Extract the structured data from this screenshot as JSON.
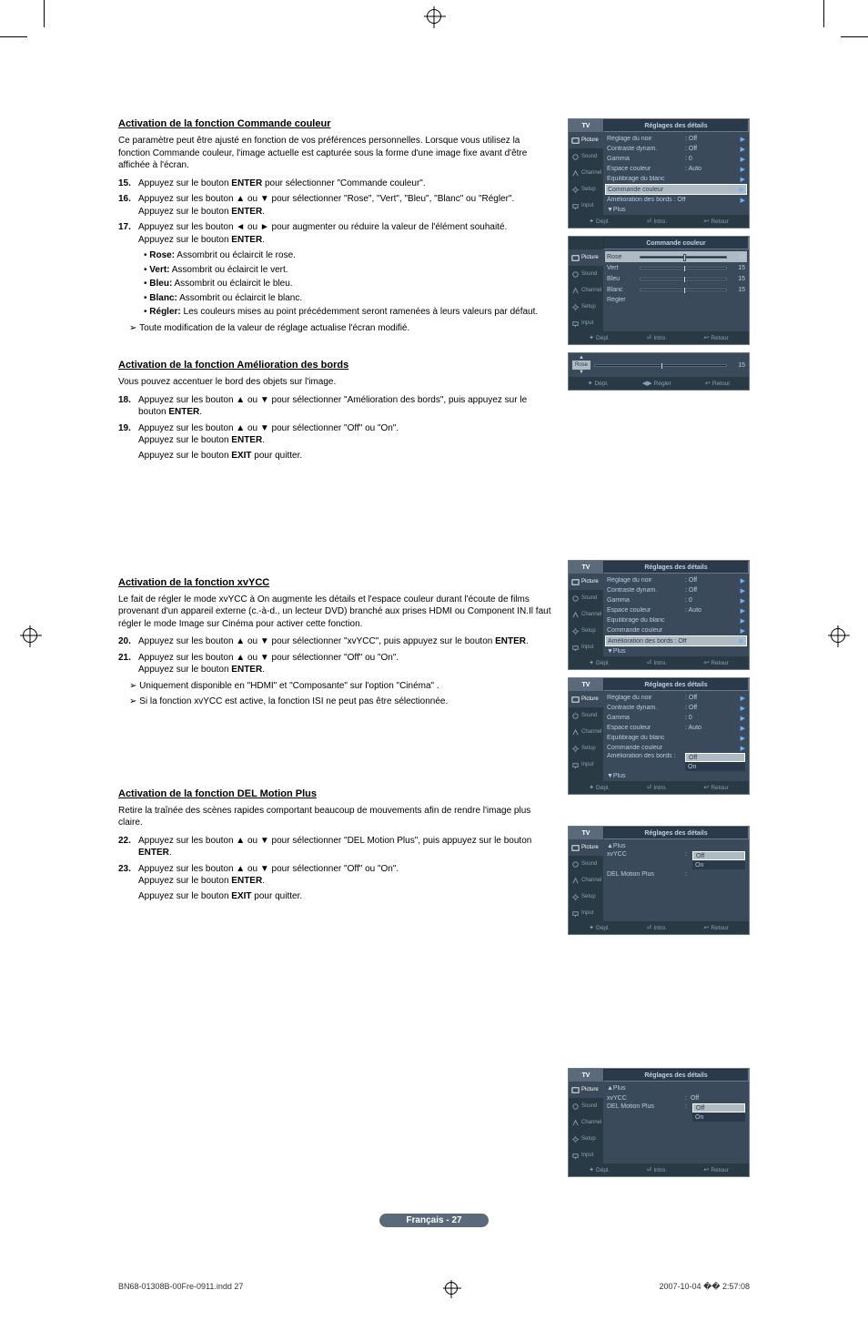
{
  "colors": {
    "osd_bg": "#3a4a5a",
    "osd_side": "#2a3a44",
    "osd_header": "#5a6a7a",
    "osd_highlight_bg": "#aebac4",
    "osd_highlight_fg": "#2a3a4a",
    "osd_text": "#b8cde0",
    "osd_arrow": "#6fb0ff",
    "badge_bg": "#5a6a7a"
  },
  "sections": {
    "colorCtrl": {
      "title": "Activation de la fonction Commande couleur",
      "desc": "Ce paramètre peut être ajusté en fonction de vos préférences personnelles. Lorsque vous utilisez la fonction Commande couleur, l'image actuelle est capturée sous la forme d'une image fixe avant d'être affichée à l'écran.",
      "steps": [
        {
          "n": "15.",
          "t": "Appuyez sur le bouton <b>ENTER</b> pour sélectionner \"Commande couleur\"."
        },
        {
          "n": "16.",
          "t": "Appuyez sur les bouton ▲ ou ▼ pour sélectionner \"Rose\", \"Vert\", \"Bleu\", \"Blanc\" ou \"Régler\".<br>Appuyez sur le bouton <b>ENTER</b>."
        },
        {
          "n": "17.",
          "t": "Appuyez sur les bouton ◄ ou ► pour augmenter ou réduire la valeur de l'élément souhaité.<br>Appuyez sur le bouton <b>ENTER</b>."
        }
      ],
      "bullets": [
        "<b>Rose:</b> Assombrit ou éclaircit le rose.",
        "<b>Vert:</b> Assombrit ou éclaircit le vert.",
        "<b>Bleu:</b> Assombrit ou éclaircit le bleu.",
        "<b>Blanc:</b> Assombrit ou éclaircit le blanc.",
        "<b>Régler:</b> Les couleurs mises au point précédemment seront ramenées à leurs valeurs par défaut."
      ],
      "note": "Toute modification de la valeur de réglage actualise l'écran modifié."
    },
    "edge": {
      "title": "Activation de la fonction Amélioration des bords",
      "desc": "Vous pouvez accentuer le bord des objets sur l'image.",
      "steps": [
        {
          "n": "18.",
          "t": "Appuyez sur les bouton ▲ ou ▼ pour sélectionner \"Amélioration des bords\", puis appuyez sur le bouton <b>ENTER</b>."
        },
        {
          "n": "19.",
          "t": "Appuyez sur les bouton ▲ ou ▼ pour sélectionner \"Off\" ou \"On\".<br>Appuyez sur le bouton <b>ENTER</b>."
        }
      ],
      "exitLine": "Appuyez sur le bouton <b>EXIT</b> pour quitter."
    },
    "xvycc": {
      "title": "Activation de la fonction xvYCC",
      "desc": "Le fait de régler le mode xvYCC à On augmente les détails et l'espace couleur durant l'écoute de films provenant d'un appareil externe (c.-à-d., un lecteur DVD) branché aux prises HDMI ou Component IN.Il faut régler le mode Image sur Cinéma pour activer cette fonction.",
      "steps": [
        {
          "n": "20.",
          "t": "Appuyez sur les bouton ▲ ou ▼ pour sélectionner \"xvYCC\", puis appuyez sur le bouton <b>ENTER</b>."
        },
        {
          "n": "21.",
          "t": "Appuyez sur les bouton ▲ ou ▼ pour sélectionner \"Off\" ou \"On\".<br>Appuyez sur le bouton <b>ENTER</b>."
        }
      ],
      "notes": [
        "Uniquement disponible en \"HDMI\" et \"Composante\" sur l'option \"Cinéma\" .",
        "Si la fonction xvYCC est active, la fonction ISI ne peut pas être sélectionnée."
      ]
    },
    "dlm": {
      "title": "Activation de la fonction DEL Motion Plus",
      "desc": "Retire la traînée des scènes rapides comportant beaucoup de mouvements afin de rendre l'image plus claire.",
      "steps": [
        {
          "n": "22.",
          "t": "Appuyez sur les bouton ▲ ou ▼ pour sélectionner \"DEL Motion Plus\", puis appuyez sur le bouton <b>ENTER</b>."
        },
        {
          "n": "23.",
          "t": "Appuyez sur les bouton ▲ ou ▼ pour sélectionner \"Off\" ou \"On\".<br>Appuyez sur le bouton <b>ENTER</b>."
        }
      ],
      "exitLine": "Appuyez sur le bouton <b>EXIT</b> pour quitter."
    }
  },
  "osd": {
    "tvLabel": "TV",
    "sideItems": [
      "Picture",
      "Sound",
      "Channel",
      "Setup",
      "Input"
    ],
    "footer": {
      "move": "Dépl.",
      "enter": "Intro.",
      "adjust": "Régler",
      "return": "Retour"
    },
    "detailTitle": "Réglages des détails",
    "colorCmdTitle": "Commande couleur",
    "rows_detail_common": [
      {
        "label": "Réglage du noir",
        "val": ": Off"
      },
      {
        "label": "Contraste dynam.",
        "val": ": Off"
      },
      {
        "label": "Gamma",
        "val": ": 0"
      },
      {
        "label": "Espace couleur",
        "val": ": Auto"
      },
      {
        "label": "Équilibrage du blanc",
        "val": ""
      },
      {
        "label": "Commande couleur",
        "val": ""
      }
    ],
    "panel1_highlight": {
      "label": "Commande couleur"
    },
    "panel1_edgeRow": {
      "label": "Amélioration des bords : Off"
    },
    "panel1_plus": "▼Plus",
    "sliders": [
      {
        "label": "Rose",
        "val": 15,
        "pct": 50,
        "hl": true
      },
      {
        "label": "Vert",
        "val": 15,
        "pct": 50
      },
      {
        "label": "Bleu",
        "val": 15,
        "pct": 50
      },
      {
        "label": "Blanc",
        "val": 15,
        "pct": 50
      }
    ],
    "sliderExtra": "Régler",
    "mini": {
      "label": "Rose",
      "val": 15,
      "pct": 50
    },
    "panel4_hl": {
      "label": "Amélioration des bords : Off"
    },
    "panel5_edgeRowLabel": "Amélioration des bords :",
    "offOn": {
      "off": "Off",
      "on": "On"
    },
    "plusUp": "▲Plus",
    "xvyccLabel": "xvYCC",
    "dlmLabel": "DEL Motion Plus"
  },
  "pageBadge": "Français - 27",
  "printFooter": {
    "file": "BN68-01308B-00Fre-0911.indd   27",
    "stamp": "2007-10-04   �� 2:57:08"
  }
}
